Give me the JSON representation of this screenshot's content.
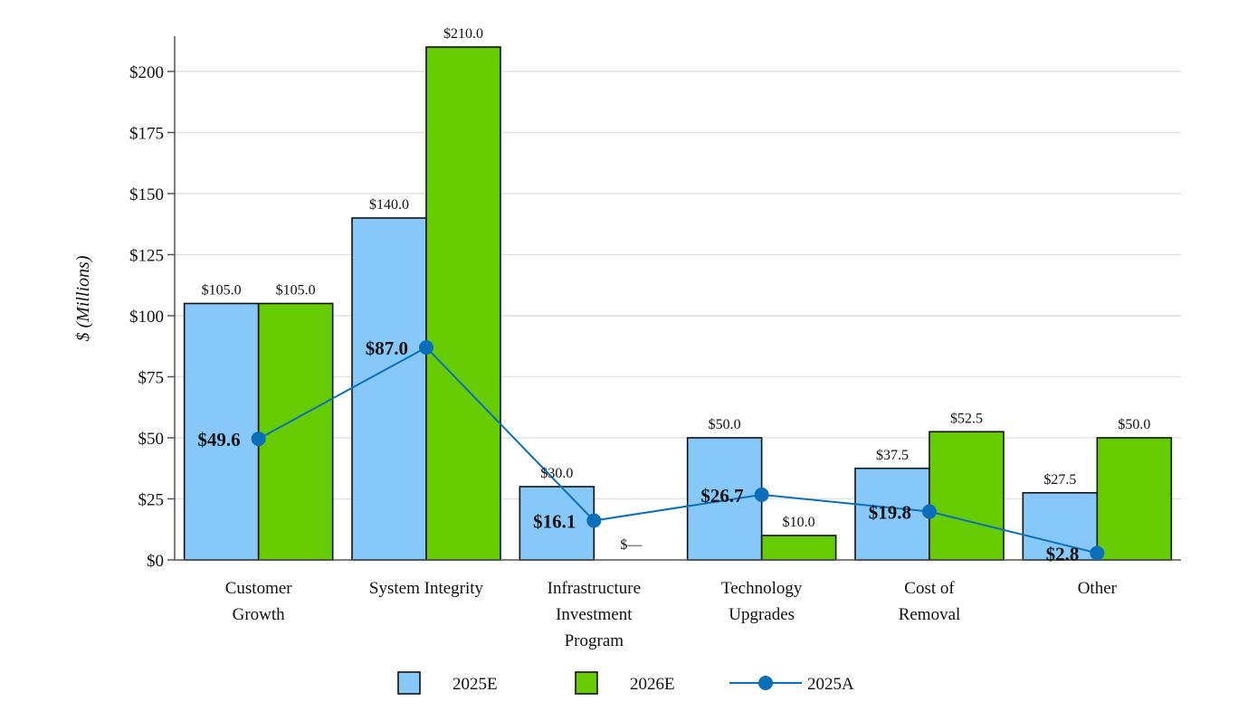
{
  "chart_data": {
    "type": "bar",
    "ylabel": "$ (Millions)",
    "ylim": [
      0,
      215
    ],
    "yticks": [
      0,
      25,
      50,
      75,
      100,
      125,
      150,
      175,
      200
    ],
    "ytick_labels": [
      "$0",
      "$25",
      "$50",
      "$75",
      "$100",
      "$125",
      "$150",
      "$175",
      "$200"
    ],
    "grid": true,
    "legend_position": "bottom-center",
    "categories": [
      [
        "Customer",
        "Growth"
      ],
      [
        "System Integrity"
      ],
      [
        "Infrastructure",
        "Investment",
        "Program"
      ],
      [
        "Technology",
        "Upgrades"
      ],
      [
        "Cost of",
        "Removal"
      ],
      [
        "Other"
      ]
    ],
    "series": [
      {
        "name": "2025E",
        "kind": "bar",
        "color": "#87c8fb",
        "values": [
          105.0,
          140.0,
          30.0,
          50.0,
          37.5,
          27.5
        ],
        "labels": [
          "$105.0",
          "$140.0",
          "$30.0",
          "$50.0",
          "$37.5",
          "$27.5"
        ]
      },
      {
        "name": "2026E",
        "kind": "bar",
        "color": "#66cc00",
        "values": [
          105.0,
          210.0,
          0,
          10.0,
          52.5,
          50.0
        ],
        "labels": [
          "$105.0",
          "$210.0",
          "$—",
          "$10.0",
          "$52.5",
          "$50.0"
        ]
      },
      {
        "name": "2025A",
        "kind": "line",
        "color": "#0a6fb8",
        "values": [
          49.6,
          87.0,
          16.1,
          26.7,
          19.8,
          2.8
        ],
        "labels": [
          "$49.6",
          "$87.0",
          "$16.1",
          "$26.7",
          "$19.8",
          "$2.8"
        ]
      }
    ]
  }
}
